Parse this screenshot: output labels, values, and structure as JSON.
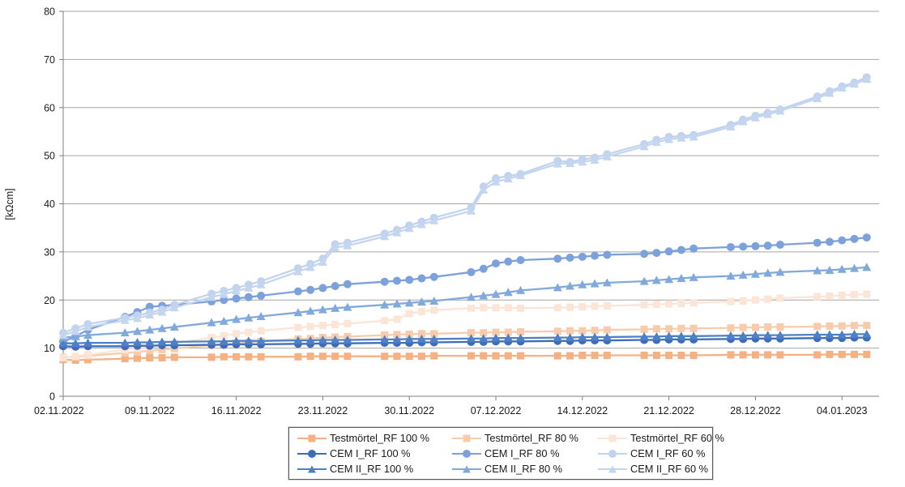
{
  "chart_data": {
    "type": "line",
    "title": "",
    "xlabel": "",
    "ylabel": "[kΩcm]",
    "ylim": [
      0,
      80
    ],
    "y_ticks": [
      0,
      10,
      20,
      30,
      40,
      50,
      60,
      70,
      80
    ],
    "grid": "horizontal",
    "legend_position": "bottom",
    "x_axis_unit": "days since 02.11.2022",
    "x_range_days": [
      0,
      66
    ],
    "x_tick_day_offsets": [
      0,
      7,
      14,
      21,
      28,
      35,
      42,
      49,
      56,
      63
    ],
    "x_tick_labels": [
      "02.11.2022",
      "09.11.2022",
      "16.11.2022",
      "23.11.2022",
      "30.11.2022",
      "07.12.2022",
      "14.12.2022",
      "21.12.2022",
      "28.12.2022",
      "04.01.2023"
    ],
    "x_day_offsets": [
      0,
      1,
      2,
      5,
      6,
      7,
      8,
      9,
      12,
      13,
      14,
      15,
      16,
      19,
      20,
      21,
      22,
      23,
      26,
      27,
      28,
      29,
      30,
      33,
      34,
      35,
      36,
      37,
      40,
      41,
      42,
      43,
      44,
      47,
      48,
      49,
      50,
      51,
      54,
      55,
      56,
      57,
      58,
      61,
      62,
      63,
      64,
      65
    ],
    "dates": [
      "02.11.2022",
      "03.11.2022",
      "04.11.2022",
      "07.11.2022",
      "08.11.2022",
      "09.11.2022",
      "10.11.2022",
      "11.11.2022",
      "14.11.2022",
      "15.11.2022",
      "16.11.2022",
      "17.11.2022",
      "18.11.2022",
      "21.11.2022",
      "22.11.2022",
      "23.11.2022",
      "24.11.2022",
      "25.11.2022",
      "28.11.2022",
      "29.11.2022",
      "30.11.2022",
      "01.12.2022",
      "02.12.2022",
      "05.12.2022",
      "06.12.2022",
      "07.12.2022",
      "08.12.2022",
      "09.12.2022",
      "12.12.2022",
      "13.12.2022",
      "14.12.2022",
      "15.12.2022",
      "16.12.2022",
      "19.12.2022",
      "20.12.2022",
      "21.12.2022",
      "22.12.2022",
      "23.12.2022",
      "26.12.2022",
      "27.12.2022",
      "28.12.2022",
      "29.12.2022",
      "30.12.2022",
      "02.01.2023",
      "03.01.2023",
      "04.01.2023",
      "05.01.2023",
      "06.01.2023"
    ],
    "series": [
      {
        "name": "Testmörtel_RF 100 %",
        "marker": "square",
        "color": "#F4B183",
        "values": [
          7.6,
          7.5,
          7.6,
          7.8,
          7.9,
          8.0,
          8.0,
          8.1,
          8.1,
          8.2,
          8.2,
          8.2,
          8.2,
          8.2,
          8.3,
          8.3,
          8.3,
          8.3,
          8.3,
          8.3,
          8.3,
          8.3,
          8.4,
          8.4,
          8.4,
          8.4,
          8.4,
          8.4,
          8.4,
          8.4,
          8.5,
          8.5,
          8.5,
          8.5,
          8.5,
          8.5,
          8.5,
          8.5,
          8.6,
          8.6,
          8.6,
          8.6,
          8.6,
          8.6,
          8.7,
          8.7,
          8.7,
          8.7
        ]
      },
      {
        "name": "Testmörtel_RF 80 %",
        "marker": "square",
        "color": "#F8CBAD",
        "values": [
          8.1,
          8.2,
          8.4,
          9.0,
          9.2,
          9.5,
          9.7,
          9.9,
          10.6,
          10.8,
          11.0,
          11.2,
          11.4,
          11.9,
          12.0,
          12.2,
          12.3,
          12.4,
          12.7,
          12.8,
          12.9,
          13.0,
          13.0,
          13.2,
          13.2,
          13.3,
          13.3,
          13.4,
          13.5,
          13.6,
          13.6,
          13.7,
          13.8,
          13.9,
          14.0,
          14.0,
          14.1,
          14.1,
          14.2,
          14.3,
          14.3,
          14.4,
          14.4,
          14.5,
          14.6,
          14.6,
          14.7,
          14.7
        ]
      },
      {
        "name": "Testmörtel_RF 60 %",
        "marker": "square",
        "color": "#FBE5D6",
        "values": [
          8.0,
          8.3,
          8.6,
          9.7,
          10.0,
          10.3,
          10.7,
          11.0,
          12.2,
          12.6,
          13.0,
          13.3,
          13.6,
          14.3,
          14.5,
          14.7,
          14.9,
          15.1,
          15.7,
          16.0,
          17.2,
          17.6,
          17.9,
          18.3,
          18.4,
          18.4,
          18.4,
          18.3,
          18.4,
          18.5,
          18.6,
          18.7,
          18.8,
          19.0,
          19.1,
          19.2,
          19.3,
          19.4,
          19.7,
          19.8,
          20.0,
          20.2,
          20.4,
          20.7,
          20.8,
          21.0,
          21.1,
          21.2
        ]
      },
      {
        "name": "CEM I_RF 100 %",
        "marker": "circle",
        "color": "#3E6CB8",
        "values": [
          10.4,
          10.3,
          10.4,
          10.4,
          10.5,
          10.5,
          10.6,
          10.6,
          10.7,
          10.7,
          10.8,
          10.8,
          10.8,
          10.9,
          10.9,
          11.0,
          11.0,
          11.0,
          11.1,
          11.1,
          11.1,
          11.2,
          11.2,
          11.3,
          11.3,
          11.4,
          11.4,
          11.4,
          11.5,
          11.5,
          11.6,
          11.6,
          11.6,
          11.7,
          11.7,
          11.8,
          11.8,
          11.8,
          11.9,
          11.9,
          12.0,
          12.0,
          12.0,
          12.1,
          12.1,
          12.1,
          12.2,
          12.2
        ]
      },
      {
        "name": "CEM I_RF 80 %",
        "marker": "circle",
        "color": "#7CA1DB",
        "values": [
          11.3,
          12.5,
          13.8,
          16.5,
          17.5,
          18.6,
          18.8,
          19.0,
          19.7,
          20.0,
          20.3,
          20.6,
          20.9,
          21.8,
          22.1,
          22.5,
          22.9,
          23.3,
          23.8,
          24.0,
          24.2,
          24.5,
          24.8,
          25.8,
          26.5,
          27.6,
          28.0,
          28.3,
          28.6,
          28.8,
          29.0,
          29.2,
          29.4,
          29.6,
          29.8,
          30.1,
          30.4,
          30.7,
          31.0,
          31.1,
          31.2,
          31.3,
          31.5,
          31.9,
          32.1,
          32.4,
          32.7,
          33.0
        ]
      },
      {
        "name": "CEM I_RF 60 %",
        "marker": "circle",
        "color": "#C1D3ED",
        "values": [
          13.2,
          14.1,
          15.0,
          16.3,
          16.8,
          17.4,
          18.0,
          19.0,
          21.3,
          21.9,
          22.5,
          23.2,
          23.9,
          26.6,
          27.5,
          28.6,
          31.6,
          31.9,
          33.8,
          34.6,
          35.5,
          36.3,
          37.1,
          39.2,
          43.6,
          45.3,
          45.8,
          46.2,
          48.9,
          48.7,
          49.2,
          49.6,
          50.3,
          52.4,
          53.3,
          53.9,
          54.1,
          54.3,
          56.4,
          57.5,
          58.3,
          58.9,
          59.6,
          62.3,
          63.4,
          64.4,
          65.2,
          66.3
        ]
      },
      {
        "name": "CEM II_RF 100 %",
        "marker": "triangle",
        "color": "#4E80C6",
        "values": [
          11.0,
          11.0,
          11.1,
          11.1,
          11.2,
          11.2,
          11.3,
          11.3,
          11.4,
          11.4,
          11.5,
          11.5,
          11.5,
          11.6,
          11.6,
          11.7,
          11.7,
          11.7,
          11.8,
          11.8,
          11.9,
          11.9,
          11.9,
          12.0,
          12.0,
          12.1,
          12.1,
          12.1,
          12.2,
          12.2,
          12.3,
          12.3,
          12.3,
          12.4,
          12.4,
          12.5,
          12.5,
          12.5,
          12.6,
          12.6,
          12.7,
          12.7,
          12.7,
          12.8,
          12.8,
          12.8,
          12.9,
          12.9
        ]
      },
      {
        "name": "CEM II_RF 80 %",
        "marker": "triangle",
        "color": "#82A9DC",
        "values": [
          12.2,
          12.4,
          12.7,
          13.2,
          13.5,
          13.8,
          14.1,
          14.4,
          15.3,
          15.6,
          16.0,
          16.3,
          16.6,
          17.4,
          17.7,
          18.0,
          18.3,
          18.5,
          19.0,
          19.2,
          19.4,
          19.6,
          19.8,
          20.6,
          20.9,
          21.2,
          21.6,
          22.0,
          22.6,
          22.9,
          23.2,
          23.4,
          23.6,
          23.9,
          24.1,
          24.3,
          24.5,
          24.7,
          25.0,
          25.2,
          25.4,
          25.6,
          25.8,
          26.1,
          26.2,
          26.4,
          26.6,
          26.8
        ]
      },
      {
        "name": "CEM II_RF 60 %",
        "marker": "triangle",
        "color": "#C4D6EF",
        "values": [
          12.7,
          13.5,
          14.4,
          15.8,
          16.2,
          16.9,
          17.5,
          18.4,
          20.6,
          21.2,
          21.9,
          22.5,
          23.2,
          25.9,
          26.8,
          27.9,
          30.9,
          31.3,
          33.2,
          34.0,
          34.9,
          35.7,
          36.5,
          38.5,
          42.9,
          44.6,
          45.2,
          45.9,
          48.3,
          48.4,
          48.7,
          49.1,
          49.8,
          51.9,
          52.8,
          53.4,
          53.7,
          53.9,
          56.0,
          57.1,
          57.9,
          58.6,
          59.3,
          61.9,
          63.0,
          64.1,
          64.9,
          65.9
        ]
      }
    ]
  },
  "legend": {
    "items": [
      {
        "label": "Testmörtel_RF 100 %"
      },
      {
        "label": "Testmörtel_RF 80 %"
      },
      {
        "label": "Testmörtel_RF 60 %"
      },
      {
        "label": "CEM I_RF 100 %"
      },
      {
        "label": "CEM I_RF 80 %"
      },
      {
        "label": "CEM I_RF 60 %"
      },
      {
        "label": "CEM II_RF 100 %"
      },
      {
        "label": "CEM II_RF 80 %"
      },
      {
        "label": "CEM II_RF 60 %"
      }
    ]
  },
  "style": {
    "gridline_color": "#a6a6a6",
    "axis_color": "#7f7f7f",
    "text_color": "#1a1a1a",
    "background": "#ffffff"
  }
}
